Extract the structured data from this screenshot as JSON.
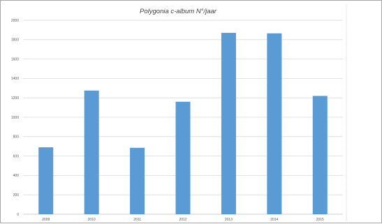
{
  "chart_data": {
    "type": "bar",
    "title": "Polygonia c-album N°/jaar",
    "xlabel": "",
    "ylabel": "",
    "categories": [
      "2009",
      "2010",
      "2011",
      "2012",
      "2013",
      "2014",
      "2015"
    ],
    "values": [
      690,
      1275,
      685,
      1160,
      1870,
      1865,
      1220
    ],
    "ylim": [
      0,
      2000
    ],
    "yticks": [
      0,
      200,
      400,
      600,
      800,
      1000,
      1200,
      1400,
      1600,
      1800,
      2000
    ],
    "grid": true,
    "legend": "none",
    "colors": {
      "bar": "#5b9bd5",
      "grid": "#d9d9d9",
      "axis": "#bfbfbf",
      "text": "#595959",
      "frame": "#a6a6a6"
    }
  }
}
